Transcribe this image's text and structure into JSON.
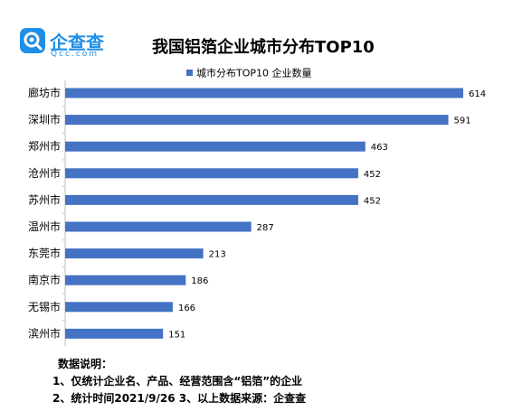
{
  "logo": {
    "name": "企查查",
    "domain": "Qcc.com"
  },
  "chart_data": {
    "type": "bar",
    "orientation": "horizontal",
    "title": "我国铝箔企业城市分布TOP10",
    "categories": [
      "廊坊市",
      "深圳市",
      "郑州市",
      "沧州市",
      "苏州市",
      "温州市",
      "东莞市",
      "南京市",
      "无锡市",
      "滨州市"
    ],
    "series": [
      {
        "name": "城市分布TOP10 企业数量",
        "values": [
          614,
          591,
          463,
          452,
          452,
          287,
          213,
          186,
          166,
          151
        ],
        "color": "#4472c4"
      }
    ],
    "xlim": [
      0,
      650
    ],
    "grid": false,
    "legend_position": "top"
  },
  "notes": {
    "heading": "数据说明：",
    "lines": [
      "1、仅统计企业名、产品、经营范围含“铝箔”的企业",
      "2、统计时间2021/9/26      3、以上数据来源：企查查"
    ]
  }
}
